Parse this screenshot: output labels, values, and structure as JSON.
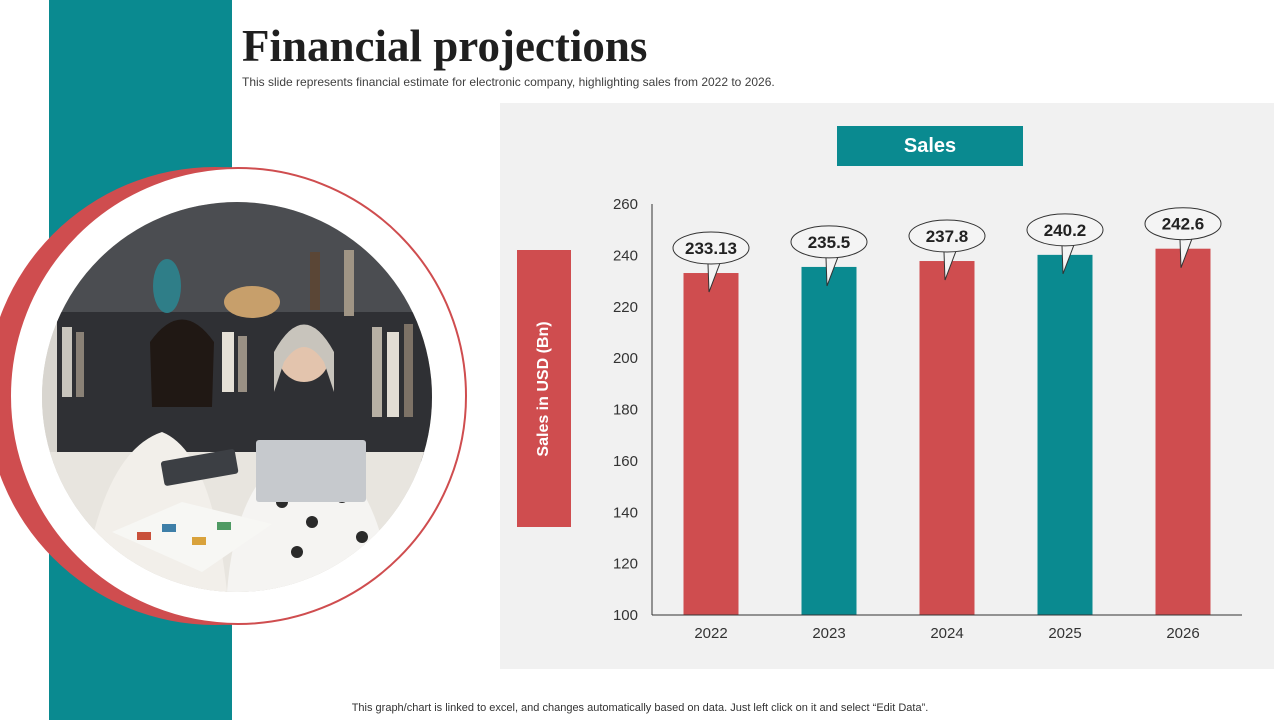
{
  "slide": {
    "title": "Financial projections",
    "subtitle": "This slide represents financial estimate for electronic company, highlighting sales from 2022 to 2026.",
    "footer": "This graph/chart is linked to excel, and changes automatically based on data. Just left click on it and select “Edit Data”."
  },
  "colors": {
    "teal": "#0a8a90",
    "red": "#cf4d4f",
    "panel": "#f1f1f1"
  },
  "chart_data": {
    "type": "bar",
    "title": "Sales",
    "ylabel": "Sales in USD (Bn)",
    "xlabel": "",
    "categories": [
      "2022",
      "2023",
      "2024",
      "2025",
      "2026"
    ],
    "values": [
      233.13,
      235.5,
      237.8,
      240.2,
      242.6
    ],
    "value_labels": [
      "233.13",
      "235.5",
      "237.8",
      "240.2",
      "242.6"
    ],
    "bar_colors": [
      "#cf4d4f",
      "#0a8a90",
      "#cf4d4f",
      "#0a8a90",
      "#cf4d4f"
    ],
    "ylim": [
      100,
      260
    ],
    "yticks": [
      100,
      120,
      140,
      160,
      180,
      200,
      220,
      240,
      260
    ],
    "grid": false,
    "legend": "none"
  }
}
